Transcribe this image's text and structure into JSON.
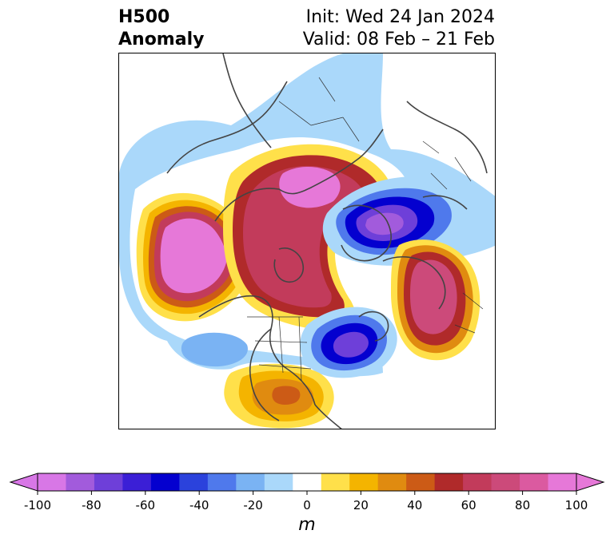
{
  "title": {
    "left_line1": "H500",
    "left_line2": "Anomaly",
    "init": "Init: Wed 24 Jan 2024",
    "valid": "Valid: 08 Feb – 21 Feb"
  },
  "colorbar": {
    "unit": "m",
    "bounds": [
      -100,
      -90,
      -80,
      -70,
      -60,
      -50,
      -40,
      -30,
      -20,
      -10,
      10,
      20,
      30,
      40,
      50,
      60,
      70,
      80,
      90,
      100
    ],
    "tick_values": [
      -100,
      -80,
      -60,
      -40,
      -20,
      0,
      20,
      40,
      60,
      80,
      100
    ],
    "tick_labels": [
      "-100",
      "-80",
      "-60",
      "-40",
      "-20",
      "0",
      "20",
      "40",
      "60",
      "80",
      "100"
    ],
    "colors": [
      "#d877e6",
      "#a25bdc",
      "#6e3fd9",
      "#3b1fd6",
      "#0400cf",
      "#2b42dc",
      "#4f79ec",
      "#7ab3f3",
      "#aad8fa",
      "#ffffff",
      "#ffe04a",
      "#f4b400",
      "#e08b10",
      "#cc5b16",
      "#b02a2a",
      "#c23b5b",
      "#cc4a7a",
      "#db5aa0",
      "#e678d8"
    ],
    "under_color": "#d877e6",
    "over_color": "#e678d8"
  },
  "map": {
    "projection": "north-polar-stereographic",
    "region": "Northern Hemisphere, North America centered"
  }
}
